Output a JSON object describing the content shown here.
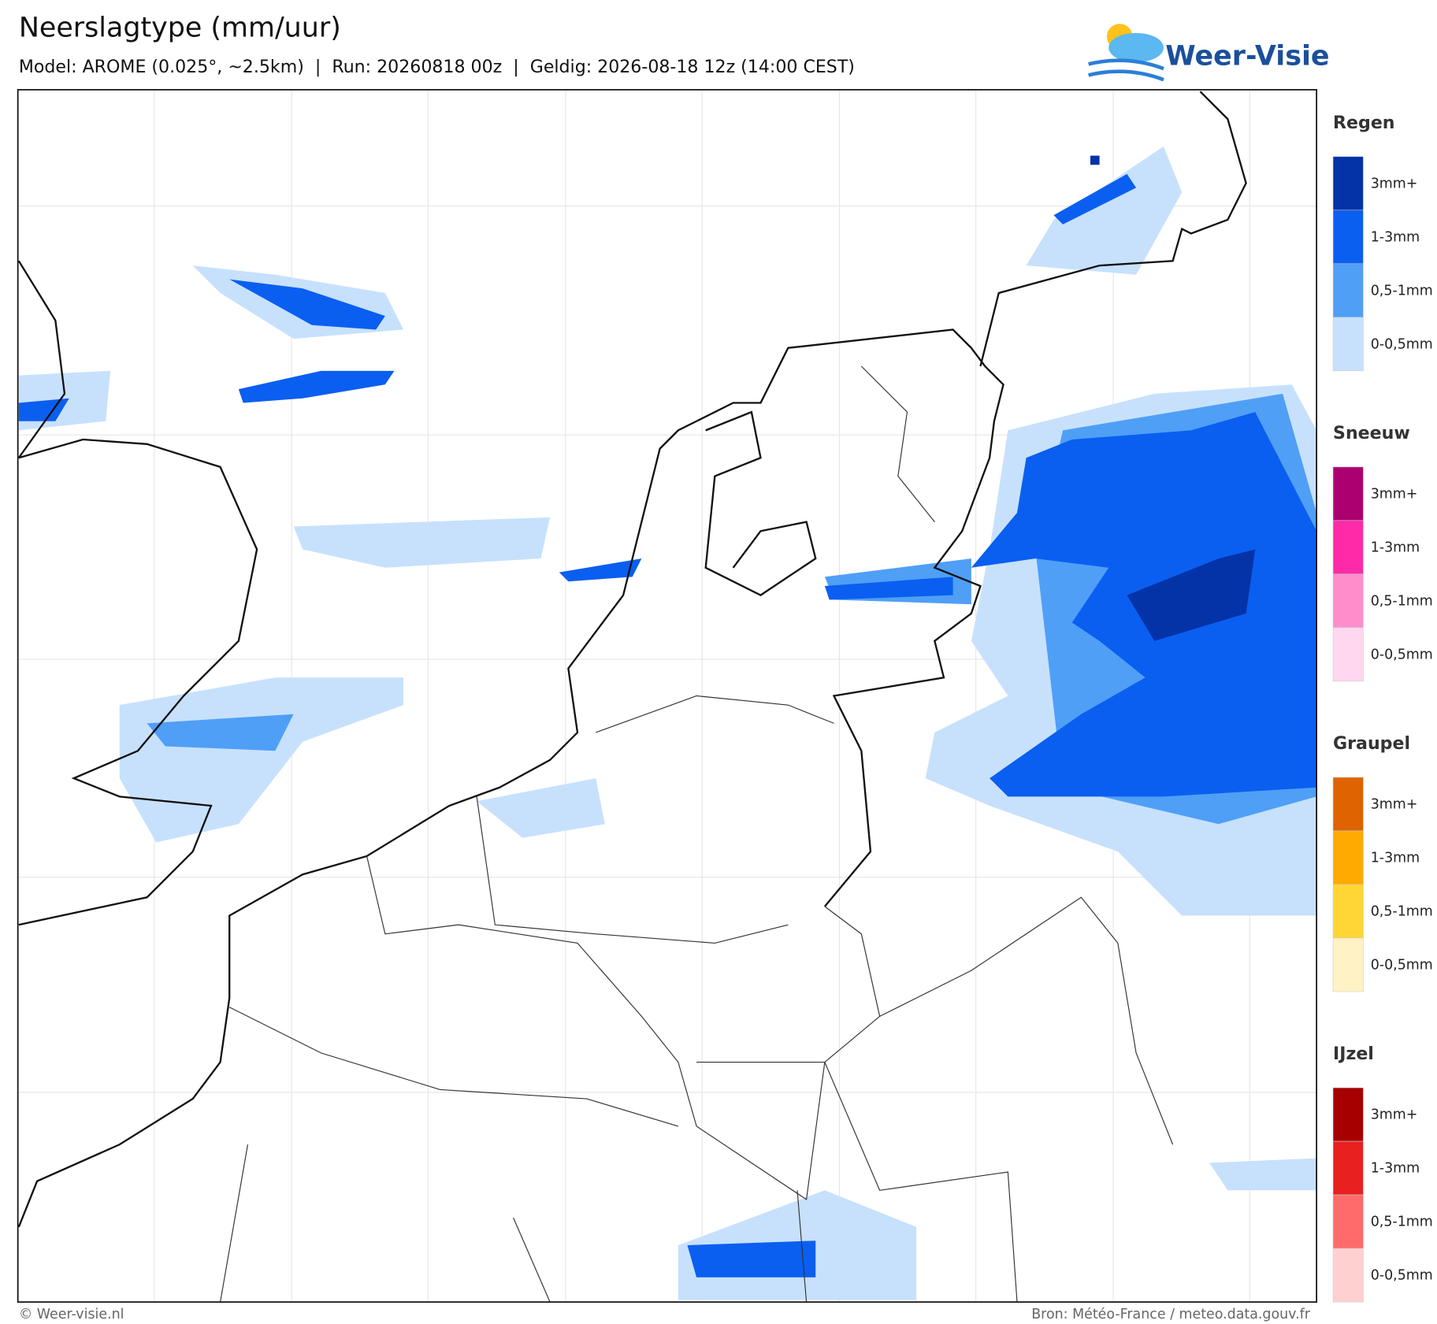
{
  "header": {
    "title": "Neerslagtype (mm/uur)",
    "subtitle": "Model: AROME (0.025°, ~2.5km)  |  Run: 20260818 00z  |  Geldig: 2026-08-18 12z (14:00 CEST)",
    "logo": "Weer-Visie"
  },
  "legend": [
    {
      "title": "Regen",
      "items": [
        {
          "label": "3mm+",
          "color": "#0433a8"
        },
        {
          "label": "1-3mm",
          "color": "#0a5ff0"
        },
        {
          "label": "0,5-1mm",
          "color": "#4f9ff7"
        },
        {
          "label": "0-0,5mm",
          "color": "#c7e1fd"
        }
      ]
    },
    {
      "title": "Sneeuw",
      "items": [
        {
          "label": "3mm+",
          "color": "#ad0070"
        },
        {
          "label": "1-3mm",
          "color": "#ff2aa8"
        },
        {
          "label": "0,5-1mm",
          "color": "#ff8dcc"
        },
        {
          "label": "0-0,5mm",
          "color": "#ffd8ef"
        }
      ]
    },
    {
      "title": "Graupel",
      "items": [
        {
          "label": "3mm+",
          "color": "#df6300"
        },
        {
          "label": "1-3mm",
          "color": "#ffaa00"
        },
        {
          "label": "0,5-1mm",
          "color": "#ffd633"
        },
        {
          "label": "0-0,5mm",
          "color": "#fff2c4"
        }
      ]
    },
    {
      "title": "IJzel",
      "items": [
        {
          "label": "3mm+",
          "color": "#a60000"
        },
        {
          "label": "1-3mm",
          "color": "#e82020"
        },
        {
          "label": "0,5-1mm",
          "color": "#ff6b6b"
        },
        {
          "label": "0-0,5mm",
          "color": "#ffd0d0"
        }
      ]
    }
  ],
  "footer": {
    "left": "© Weer-visie.nl",
    "right": "Bron: Météo-France / meteo.data.gouv.fr"
  }
}
